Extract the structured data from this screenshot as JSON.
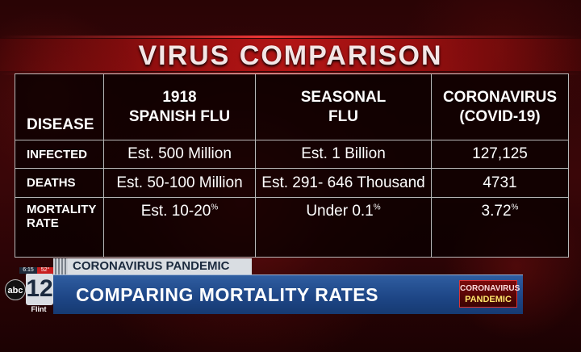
{
  "title": "VIRUS COMPARISON",
  "table": {
    "header": {
      "label": "DISEASE",
      "col1_line1": "1918",
      "col1_line2": "SPANISH FLU",
      "col2_line1": "SEASONAL",
      "col2_line2": "FLU",
      "col3_line1": "CORONAVIRUS",
      "col3_line2": "(COVID-19)"
    },
    "rows": [
      {
        "label": "INFECTED",
        "c1": "Est. 500 Million",
        "c2": "Est. 1 Billion",
        "c3": "127,125"
      },
      {
        "label": "DEATHS",
        "c1": "Est. 50-100 Million",
        "c2": "Est. 291- 646 Thousand",
        "c3": "4731"
      },
      {
        "label_line1": "MORTALITY",
        "label_line2": "RATE",
        "c1": "Est. 10-20",
        "c1_sup": "%",
        "c2": "Under 0.1",
        "c2_sup": "%",
        "c3": "3.72",
        "c3_sup": "%"
      }
    ]
  },
  "lower_third": {
    "topic": "CORONAVIRUS PANDEMIC",
    "headline": "COMPARING MORTALITY RATES",
    "badge_line1": "CORONAVIRUS",
    "badge_line2": "PANDEMIC"
  },
  "station": {
    "network": "abc",
    "number": "12",
    "city": "Flint",
    "time": "6:15",
    "temp": "52°"
  },
  "colors": {
    "background": "#2a0405",
    "title_band": "#d21919",
    "lower_third_blue": "#1d4585",
    "badge_yellow": "#ffe56a"
  }
}
